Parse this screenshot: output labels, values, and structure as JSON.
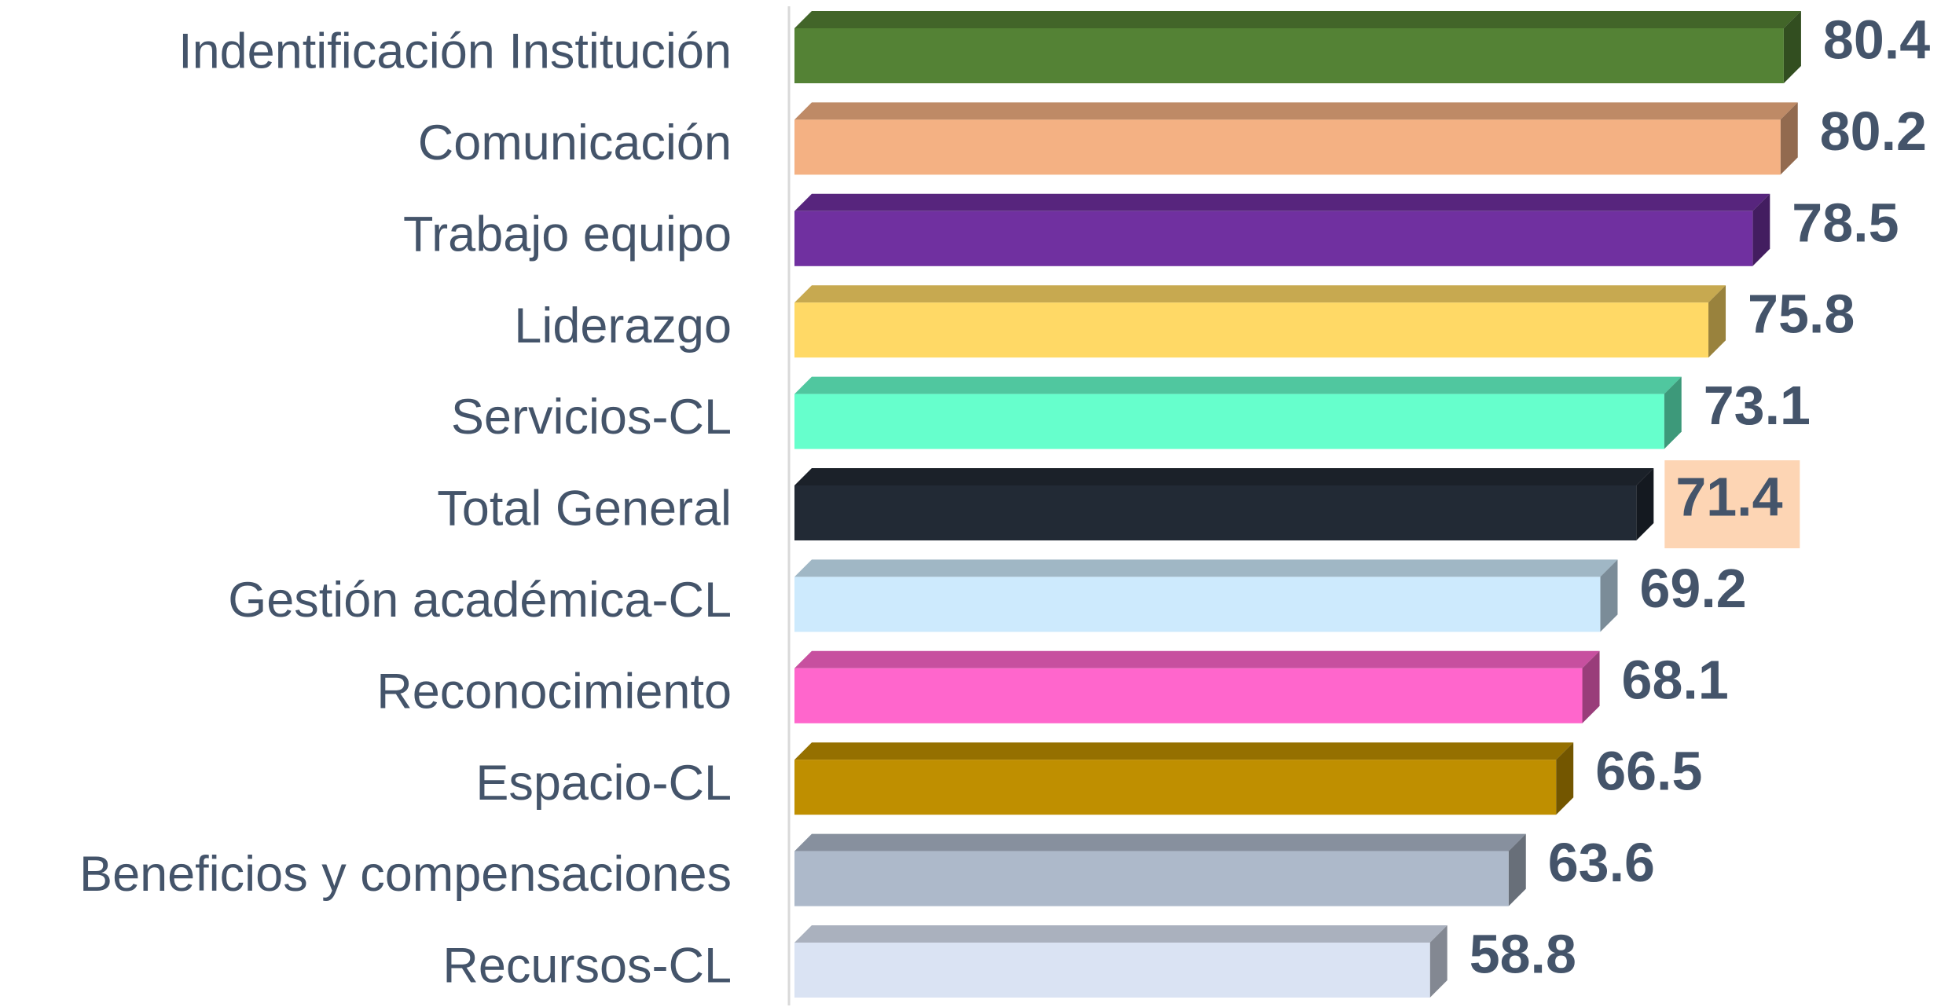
{
  "chart_data": {
    "type": "bar",
    "orientation": "horizontal",
    "categories": [
      "Indentificación Institución",
      "Comunicación",
      "Trabajo equipo",
      "Liderazgo",
      "Servicios-CL",
      "Total General",
      "Gestión académica-CL",
      "Reconocimiento",
      "Espacio-CL",
      "Beneficios y compensaciones",
      "Recursos-CL"
    ],
    "values": [
      80.4,
      80.2,
      78.5,
      75.8,
      73.1,
      71.4,
      69.2,
      68.1,
      66.5,
      63.6,
      58.8
    ],
    "colors": [
      "#548235",
      "#f4b183",
      "#7030a0",
      "#ffd966",
      "#66ffcc",
      "#222a35",
      "#cdeafd",
      "#ff66cc",
      "#bf8f00",
      "#adb9ca",
      "#dae3f3"
    ],
    "xlim": [
      20,
      90
    ],
    "highlight": 5,
    "highlight_color": "#fdd5b4"
  }
}
